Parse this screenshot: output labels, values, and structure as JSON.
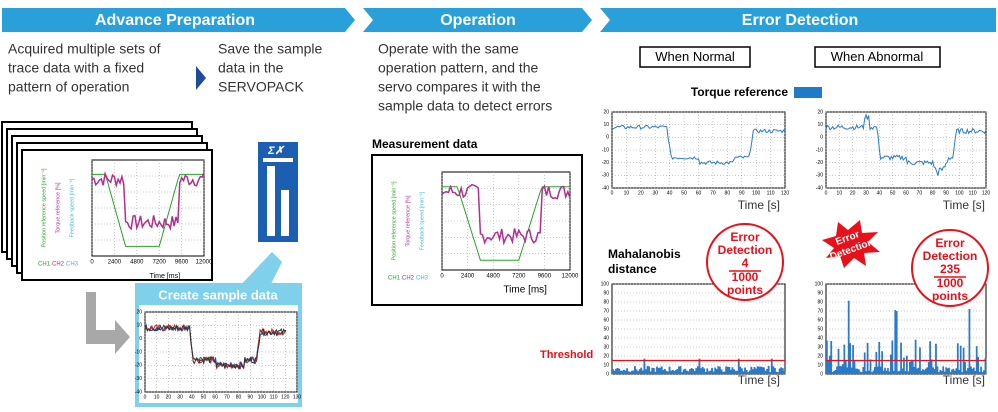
{
  "headers": [
    "Advance Preparation",
    "Operation",
    "Error Detection"
  ],
  "advance": {
    "step1": [
      "Acquired multiple sets of",
      "trace data with a fixed",
      "pattern of operation"
    ],
    "step2": [
      "Save the sample",
      "data in the",
      "SERVOPACK"
    ],
    "axis_labels": [
      "Position reference speed [min⁻¹]",
      "Torque reference [%]",
      "Feedback speed [min⁻¹]"
    ],
    "channels": [
      "CH1",
      "CH2",
      "CH3"
    ],
    "xticks": [
      0,
      2400,
      4800,
      7200,
      9600,
      12000
    ],
    "x_label": "Time [ms]",
    "create": "Create sample data",
    "sample_yticks": [
      20,
      10,
      0,
      -10,
      -20,
      -30,
      -40
    ],
    "sample_xticks": [
      0,
      10,
      20,
      30,
      40,
      50,
      60,
      70,
      80,
      90,
      100,
      110,
      120,
      130
    ]
  },
  "operation": {
    "text": [
      "Operate with the same",
      "operation pattern, and the",
      "servo compares it with the",
      "sample data to detect errors"
    ],
    "measurement": "Measurement data",
    "axis_labels": [
      "Position reference speed [min⁻¹]",
      "Torque reference [%]",
      "Feedback speed [min⁻¹]"
    ],
    "channels": [
      "CH1",
      "CH2",
      "CH3"
    ],
    "xticks": [
      0,
      2400,
      4800,
      7200,
      9600,
      12000
    ],
    "x_label": "Time [ms]"
  },
  "detection": {
    "normal": "When Normal",
    "abnormal": "When Abnormal",
    "legend": "Torque reference",
    "torque_yticks": [
      20,
      10,
      0,
      -10,
      -20,
      -30,
      -40
    ],
    "xticks": [
      0,
      10,
      20,
      30,
      40,
      50,
      60,
      70,
      80,
      90,
      100,
      110,
      120
    ],
    "time_label": "Time [s]",
    "mahalanobis": [
      "Mahalanobis",
      "distance"
    ],
    "maha_yticks": [
      100,
      90,
      80,
      70,
      60,
      50,
      40,
      30,
      20,
      10,
      0
    ],
    "threshold": "Threshold",
    "burst": [
      "Error",
      "Detection"
    ],
    "badge_normal": {
      "title": [
        "Error",
        "Detection"
      ],
      "count": "4",
      "total": "1000",
      "unit": "points"
    },
    "badge_abnormal": {
      "title": [
        "Error",
        "Detection"
      ],
      "count": "235",
      "total": "1000",
      "unit": "points"
    }
  }
}
